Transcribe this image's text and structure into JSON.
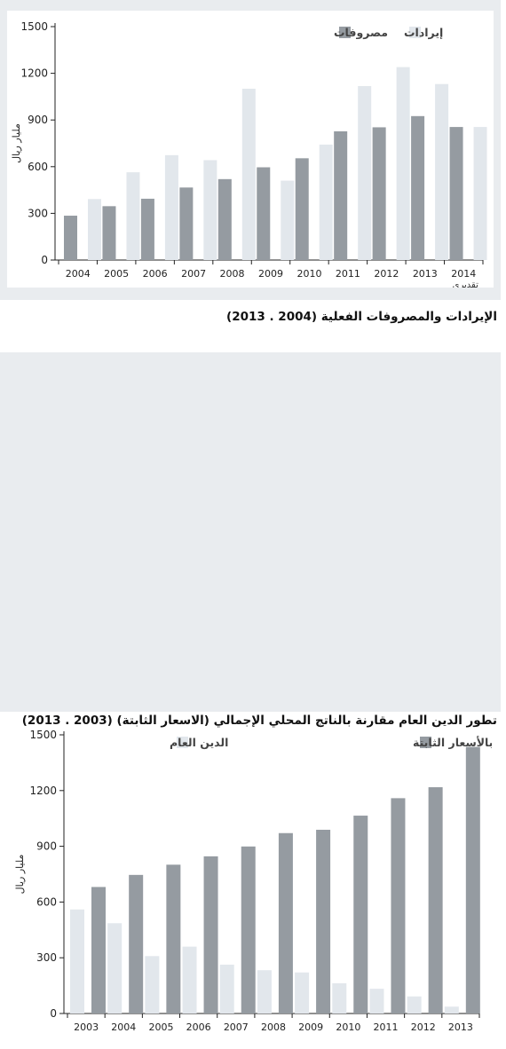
{
  "chart_data": [
    {
      "type": "bar",
      "title": "الإيرادات والمصروفات الفعلية (2004 . 2013)",
      "ylabel": "مليار ريال",
      "ylim": [
        0,
        1500
      ],
      "yticks": [
        0,
        300,
        600,
        900,
        1200,
        1500
      ],
      "categories": [
        "2004",
        "2005",
        "2006",
        "2007",
        "2008",
        "2009",
        "2010",
        "2011",
        "2012",
        "2013",
        "2014"
      ],
      "category_sublabels": {
        "2014": "تقديري"
      },
      "series": [
        {
          "name": "مصروفات",
          "color": "#959ba1",
          "values": [
            285,
            346,
            394,
            466,
            520,
            596,
            654,
            827,
            853,
            925,
            855
          ]
        },
        {
          "name": "إيرادات",
          "color": "#e2e7ec",
          "values": [
            392,
            564,
            674,
            642,
            1101,
            510,
            742,
            1118,
            1240,
            1131,
            855
          ]
        }
      ],
      "legend_position": "top-right",
      "grid": false
    },
    {
      "type": "bar",
      "title": "تطور الدين العام مقارنة بالناتج المحلي الإجمالي (الاسعار الثابتة) (2003 . 2013)",
      "ylabel": "مليار ريال",
      "ylim": [
        0,
        1500
      ],
      "yticks": [
        0,
        300,
        600,
        900,
        1200,
        1500
      ],
      "categories": [
        "2003",
        "2004",
        "2005",
        "2006",
        "2007",
        "2008",
        "2009",
        "2010",
        "2011",
        "2012",
        "2013"
      ],
      "series": [
        {
          "name": "الدين العام",
          "color": "#e2e7ec",
          "values": [
            560,
            486,
            309,
            360,
            263,
            233,
            221,
            163,
            133,
            92,
            37
          ]
        },
        {
          "name": "الناتج المحلي الإجمالي بالأسعار الثابتة",
          "color": "#959ba1",
          "values": [
            681,
            746,
            801,
            846,
            899,
            971,
            989,
            1065,
            1159,
            1218,
            1435
          ]
        }
      ],
      "legend_position": "top-right",
      "grid": false
    }
  ]
}
